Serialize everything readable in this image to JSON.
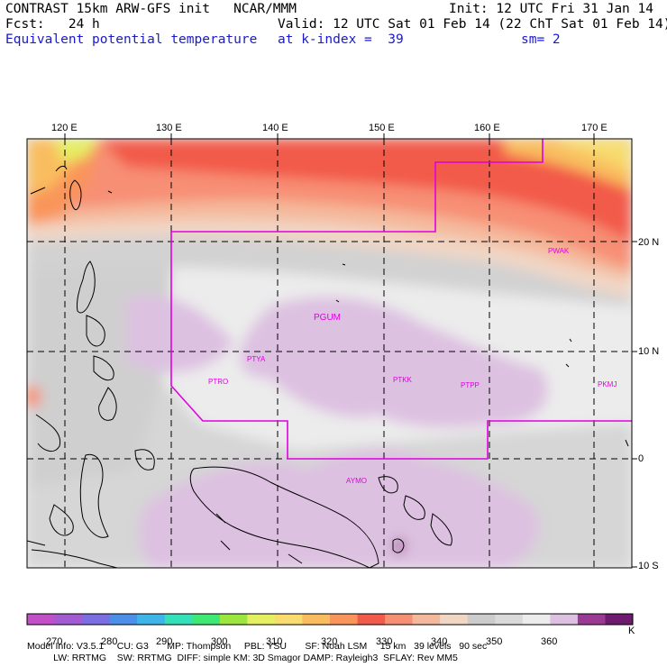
{
  "header": {
    "line1_left": "CONTRAST 15km ARW-GFS init   NCAR/MMM",
    "line1_right": "Init: 12 UTC Fri 31 Jan 14",
    "line2_left": "Fcst:   24 h",
    "line2_right": "Valid: 12 UTC Sat 01 Feb 14 (22 ChT Sat 01 Feb 14)",
    "line3_left": "Equivalent potential temperature",
    "line3_mid": "at k-index =  39",
    "line3_right": "sm= 2"
  },
  "map": {
    "lon_labels": [
      "120 E",
      "130 E",
      "140 E",
      "150 E",
      "160 E",
      "170 E"
    ],
    "lat_labels": [
      "20 N",
      "10 N",
      "0",
      "10 S"
    ],
    "stations": [
      "PWAK",
      "PGUM",
      "PTYA",
      "PTRO",
      "PTKK",
      "PTPP",
      "PKMJ",
      "AYMO"
    ]
  },
  "colorbar": {
    "colors": [
      "#c34fc8",
      "#a25bd2",
      "#7b6de2",
      "#4b8fe8",
      "#3eb4e8",
      "#34e0b8",
      "#3ee873",
      "#9be63f",
      "#e4ef62",
      "#f8dc70",
      "#f9bd5f",
      "#f9955a",
      "#f25a4a",
      "#f78f74",
      "#f4b99c",
      "#f1d6c4",
      "#cccccc",
      "#dadada",
      "#ececec",
      "#ddc1e1",
      "#9a3a92",
      "#6e1a6e"
    ],
    "labels": [
      "270",
      "280",
      "290",
      "300",
      "310",
      "320",
      "330",
      "340",
      "350",
      "360"
    ],
    "unit": "K"
  },
  "footer": {
    "line1": "Model Info: V3.5.1     CU: G3       MP: Thompson     PBL: YSU       SF: Noah LSM     15 km   39 levels   90 sec",
    "line2": "          LW: RRTMG    SW: RRTMG  DIFF: simple KM: 3D Smagor DAMP: Rayleigh3  SFLAY: Rev MM5"
  }
}
